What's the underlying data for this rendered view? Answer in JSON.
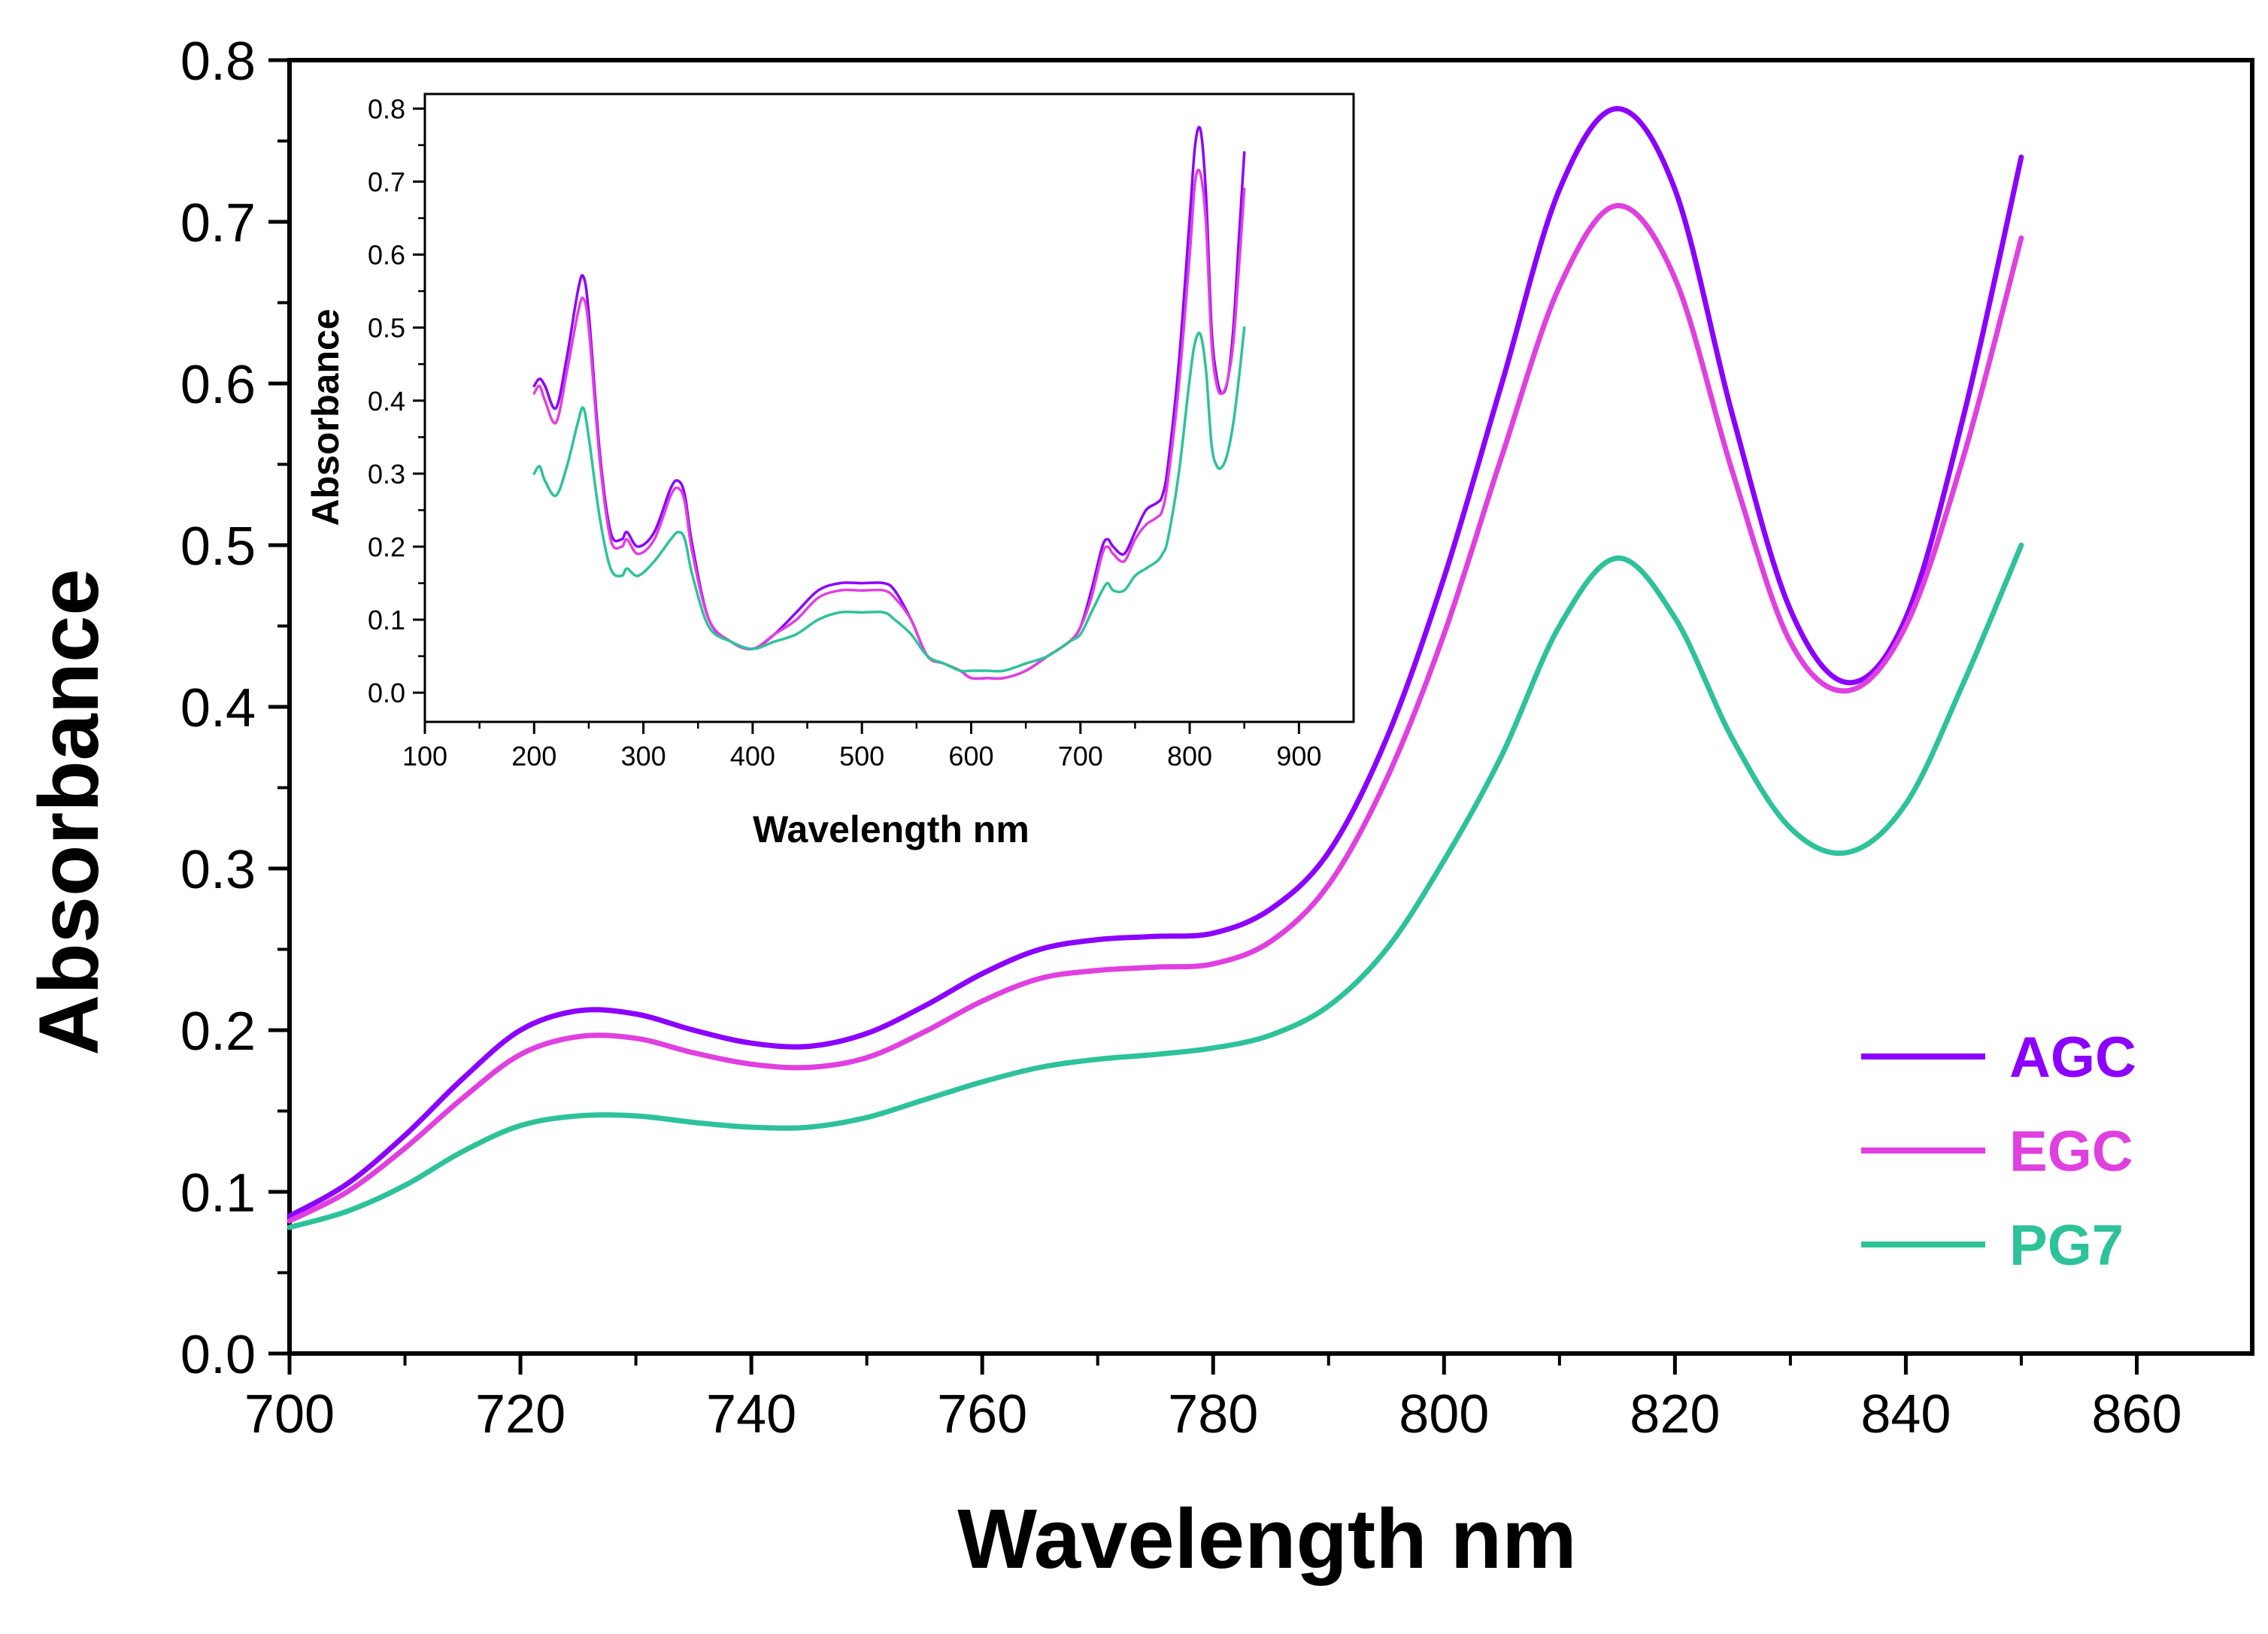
{
  "chart_data": [
    {
      "id": "main",
      "type": "line",
      "title": "",
      "xlabel": "Wavelength nm",
      "ylabel": "Absorbance",
      "xlim": [
        700,
        870
      ],
      "ylim": [
        0.0,
        0.8
      ],
      "x_ticks": [
        700,
        720,
        740,
        760,
        780,
        800,
        820,
        840,
        860
      ],
      "x_tick_labels": [
        "700",
        "720",
        "740",
        "760",
        "780",
        "800",
        "820",
        "840",
        "860"
      ],
      "y_ticks": [
        0.0,
        0.1,
        0.2,
        0.3,
        0.4,
        0.5,
        0.6,
        0.7,
        0.8
      ],
      "y_tick_labels": [
        "0.0",
        "0.1",
        "0.2",
        "0.3",
        "0.4",
        "0.5",
        "0.6",
        "0.7",
        "0.8"
      ],
      "grid": false,
      "legend_position": "bottom-right",
      "series": [
        {
          "name": "AGC",
          "color": "#8B00FF",
          "x": [
            700,
            705,
            710,
            715,
            720,
            725,
            730,
            735,
            740,
            745,
            750,
            755,
            760,
            765,
            770,
            775,
            780,
            785,
            790,
            795,
            800,
            805,
            810,
            815,
            820,
            825,
            830,
            835,
            840,
            845,
            850
          ],
          "y": [
            0.085,
            0.105,
            0.135,
            0.17,
            0.2,
            0.212,
            0.21,
            0.2,
            0.192,
            0.19,
            0.198,
            0.215,
            0.235,
            0.25,
            0.256,
            0.258,
            0.26,
            0.275,
            0.31,
            0.38,
            0.48,
            0.6,
            0.72,
            0.77,
            0.72,
            0.58,
            0.46,
            0.415,
            0.455,
            0.58,
            0.74
          ]
        },
        {
          "name": "EGC",
          "color": "#E040E0",
          "x": [
            700,
            705,
            710,
            715,
            720,
            725,
            730,
            735,
            740,
            745,
            750,
            755,
            760,
            765,
            770,
            775,
            780,
            785,
            790,
            795,
            800,
            805,
            810,
            815,
            820,
            825,
            830,
            835,
            840,
            845,
            850
          ],
          "y": [
            0.082,
            0.1,
            0.127,
            0.158,
            0.185,
            0.196,
            0.195,
            0.186,
            0.179,
            0.177,
            0.183,
            0.199,
            0.218,
            0.232,
            0.237,
            0.239,
            0.241,
            0.255,
            0.29,
            0.355,
            0.445,
            0.555,
            0.66,
            0.71,
            0.665,
            0.545,
            0.44,
            0.41,
            0.45,
            0.555,
            0.69
          ]
        },
        {
          "name": "PG7",
          "color": "#2EC29A",
          "x": [
            700,
            705,
            710,
            715,
            720,
            725,
            730,
            735,
            740,
            745,
            750,
            755,
            760,
            765,
            770,
            775,
            780,
            785,
            790,
            795,
            800,
            805,
            810,
            815,
            820,
            825,
            830,
            835,
            840,
            845,
            850
          ],
          "y": [
            0.078,
            0.088,
            0.104,
            0.125,
            0.141,
            0.147,
            0.147,
            0.143,
            0.14,
            0.14,
            0.146,
            0.157,
            0.168,
            0.177,
            0.182,
            0.185,
            0.189,
            0.197,
            0.215,
            0.25,
            0.305,
            0.37,
            0.45,
            0.492,
            0.455,
            0.38,
            0.325,
            0.31,
            0.34,
            0.415,
            0.5
          ]
        }
      ]
    },
    {
      "id": "inset",
      "type": "line",
      "title": "",
      "xlabel": "Wavelength nm",
      "ylabel": "Absorbance",
      "xlim": [
        100,
        950
      ],
      "ylim": [
        -0.04,
        0.82
      ],
      "x_ticks": [
        100,
        200,
        300,
        400,
        500,
        600,
        700,
        800,
        900
      ],
      "x_tick_labels": [
        "100",
        "200",
        "300",
        "400",
        "500",
        "600",
        "700",
        "800",
        "900"
      ],
      "y_ticks": [
        0.0,
        0.1,
        0.2,
        0.3,
        0.4,
        0.5,
        0.6,
        0.7,
        0.8
      ],
      "y_tick_labels": [
        "0.0",
        "0.1",
        "0.2",
        "0.3",
        "0.4",
        "0.5",
        "0.6",
        "0.7",
        "0.8"
      ],
      "grid": false,
      "series": [
        {
          "name": "AGC",
          "color": "#8B00FF",
          "x": [
            200,
            205,
            210,
            220,
            230,
            240,
            245,
            250,
            260,
            270,
            280,
            285,
            295,
            310,
            325,
            332,
            338,
            345,
            360,
            380,
            400,
            420,
            440,
            460,
            480,
            500,
            520,
            530,
            545,
            560,
            575,
            590,
            600,
            615,
            630,
            650,
            670,
            690,
            700,
            710,
            720,
            725,
            730,
            740,
            750,
            760,
            770,
            775,
            780,
            790,
            800,
            805,
            810,
            815,
            820,
            825,
            830,
            835,
            840,
            845,
            850
          ],
          "y": [
            0.42,
            0.43,
            0.42,
            0.39,
            0.46,
            0.55,
            0.57,
            0.52,
            0.33,
            0.22,
            0.21,
            0.22,
            0.2,
            0.22,
            0.28,
            0.29,
            0.27,
            0.2,
            0.1,
            0.07,
            0.06,
            0.08,
            0.11,
            0.14,
            0.15,
            0.15,
            0.15,
            0.14,
            0.1,
            0.05,
            0.04,
            0.03,
            0.02,
            0.02,
            0.02,
            0.03,
            0.05,
            0.07,
            0.09,
            0.14,
            0.2,
            0.21,
            0.2,
            0.19,
            0.22,
            0.25,
            0.26,
            0.27,
            0.31,
            0.45,
            0.65,
            0.75,
            0.77,
            0.68,
            0.5,
            0.43,
            0.41,
            0.43,
            0.5,
            0.62,
            0.74
          ]
        },
        {
          "name": "EGC",
          "color": "#E040E0",
          "x": [
            200,
            205,
            210,
            220,
            230,
            240,
            245,
            250,
            260,
            270,
            280,
            285,
            295,
            310,
            325,
            332,
            338,
            345,
            360,
            380,
            400,
            420,
            440,
            460,
            480,
            500,
            520,
            530,
            545,
            560,
            575,
            590,
            600,
            615,
            630,
            650,
            670,
            690,
            700,
            710,
            720,
            725,
            730,
            740,
            750,
            760,
            770,
            775,
            780,
            790,
            800,
            805,
            810,
            815,
            820,
            825,
            830,
            835,
            840,
            845,
            850
          ],
          "y": [
            0.41,
            0.42,
            0.4,
            0.37,
            0.44,
            0.52,
            0.54,
            0.5,
            0.32,
            0.21,
            0.2,
            0.21,
            0.19,
            0.21,
            0.27,
            0.28,
            0.26,
            0.19,
            0.1,
            0.07,
            0.06,
            0.08,
            0.1,
            0.13,
            0.14,
            0.14,
            0.14,
            0.13,
            0.1,
            0.05,
            0.04,
            0.03,
            0.02,
            0.02,
            0.02,
            0.03,
            0.05,
            0.07,
            0.09,
            0.13,
            0.19,
            0.2,
            0.19,
            0.18,
            0.21,
            0.23,
            0.24,
            0.25,
            0.29,
            0.42,
            0.6,
            0.7,
            0.71,
            0.64,
            0.48,
            0.42,
            0.41,
            0.43,
            0.48,
            0.58,
            0.69
          ]
        },
        {
          "name": "PG7",
          "color": "#2EC29A",
          "x": [
            200,
            205,
            210,
            220,
            230,
            240,
            245,
            250,
            260,
            270,
            280,
            285,
            295,
            310,
            325,
            332,
            338,
            345,
            360,
            380,
            400,
            420,
            440,
            460,
            480,
            500,
            520,
            530,
            545,
            560,
            575,
            590,
            600,
            615,
            630,
            650,
            670,
            690,
            700,
            710,
            720,
            725,
            730,
            740,
            750,
            760,
            770,
            775,
            780,
            790,
            800,
            805,
            810,
            815,
            820,
            825,
            830,
            835,
            840,
            845,
            850
          ],
          "y": [
            0.3,
            0.31,
            0.29,
            0.27,
            0.31,
            0.37,
            0.39,
            0.35,
            0.24,
            0.17,
            0.16,
            0.17,
            0.16,
            0.18,
            0.21,
            0.22,
            0.21,
            0.16,
            0.09,
            0.07,
            0.06,
            0.07,
            0.08,
            0.1,
            0.11,
            0.11,
            0.11,
            0.1,
            0.08,
            0.05,
            0.04,
            0.03,
            0.03,
            0.03,
            0.03,
            0.04,
            0.05,
            0.07,
            0.08,
            0.11,
            0.14,
            0.15,
            0.14,
            0.14,
            0.16,
            0.17,
            0.18,
            0.19,
            0.21,
            0.3,
            0.43,
            0.48,
            0.49,
            0.44,
            0.34,
            0.31,
            0.31,
            0.33,
            0.37,
            0.43,
            0.5
          ]
        }
      ]
    }
  ]
}
